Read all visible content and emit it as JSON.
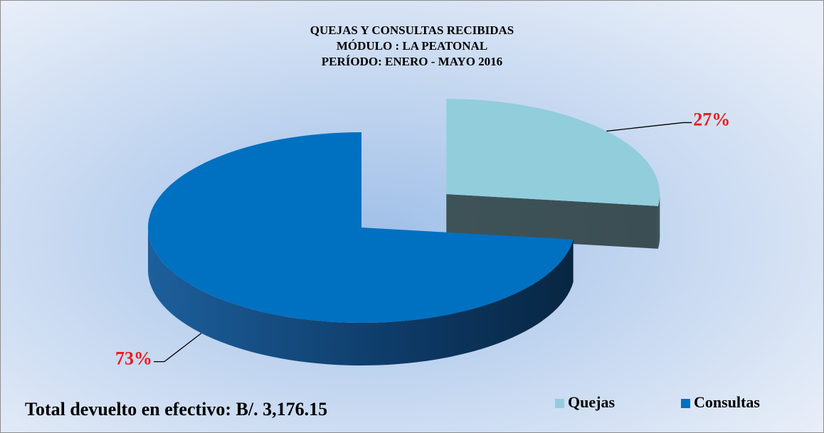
{
  "chart_data": {
    "type": "pie3d",
    "title": [
      "QUEJAS Y CONSULTAS RECIBIDAS",
      "MÓDULO : LA PEATONAL",
      "PERÍODO:  ENERO - MAYO 2016"
    ],
    "categories": [
      "Quejas",
      "Consultas"
    ],
    "values": [
      27,
      73
    ],
    "value_labels": [
      "27%",
      "73%"
    ],
    "colors": [
      "#92cddc",
      "#0070c0"
    ],
    "exploded": [
      true,
      false
    ],
    "annotation": "Total devuelto en efectivo: B/. 3,176.15",
    "legend": "bottom-right"
  }
}
